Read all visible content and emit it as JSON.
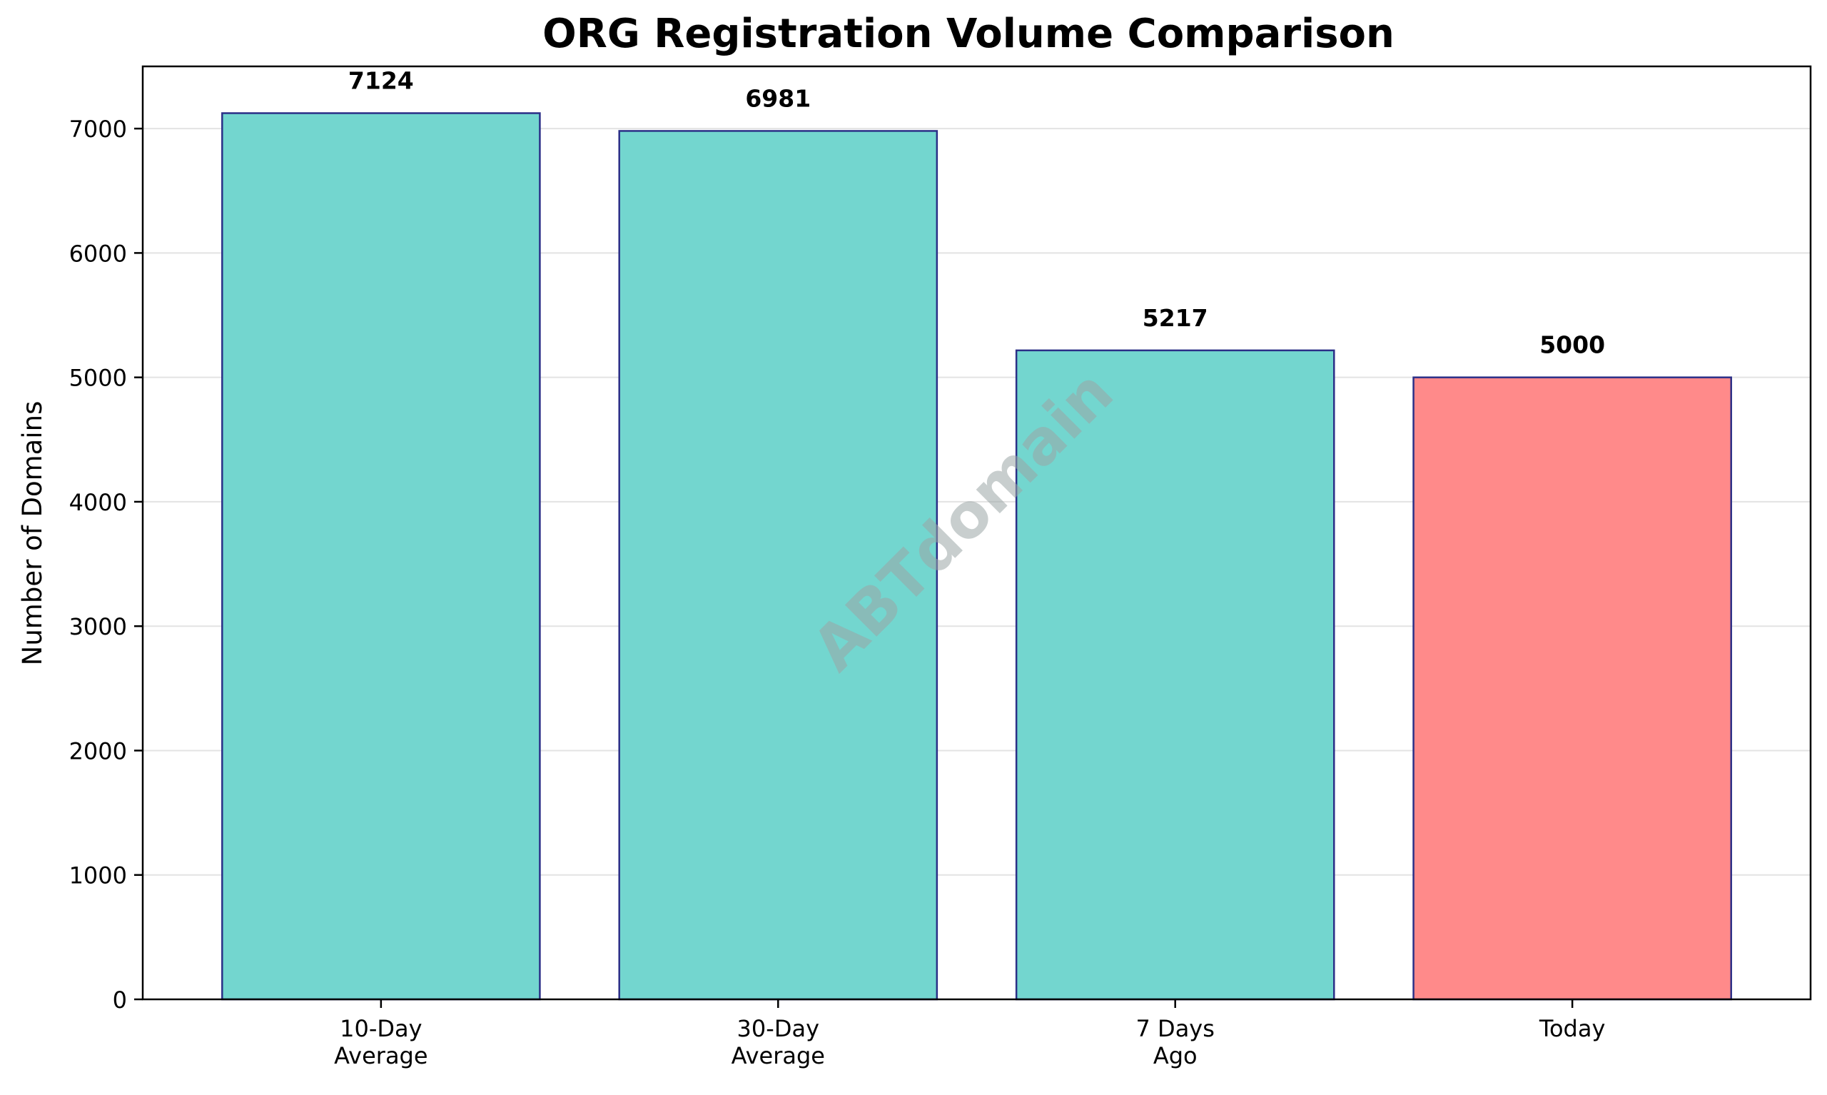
{
  "chart_data": {
    "type": "bar",
    "title": "ORG Registration Volume Comparison",
    "xlabel": "",
    "ylabel": "Number of Domains",
    "categories": [
      [
        "10-Day",
        "Average"
      ],
      [
        "30-Day",
        "Average"
      ],
      [
        "7 Days",
        "Ago"
      ],
      [
        "Today"
      ]
    ],
    "values": [
      7124,
      6981,
      5217,
      5000
    ],
    "value_labels": [
      "7124",
      "6981",
      "5217",
      "5000"
    ],
    "bar_colors": [
      "#73d6cf",
      "#73d6cf",
      "#73d6cf",
      "#ff8a8a"
    ],
    "bar_edge_color": "#2b2f87",
    "ylim": [
      0,
      7500
    ],
    "yticks": [
      0,
      1000,
      2000,
      3000,
      4000,
      5000,
      6000,
      7000
    ],
    "grid": "horizontal",
    "watermark": "ABTdomain"
  }
}
